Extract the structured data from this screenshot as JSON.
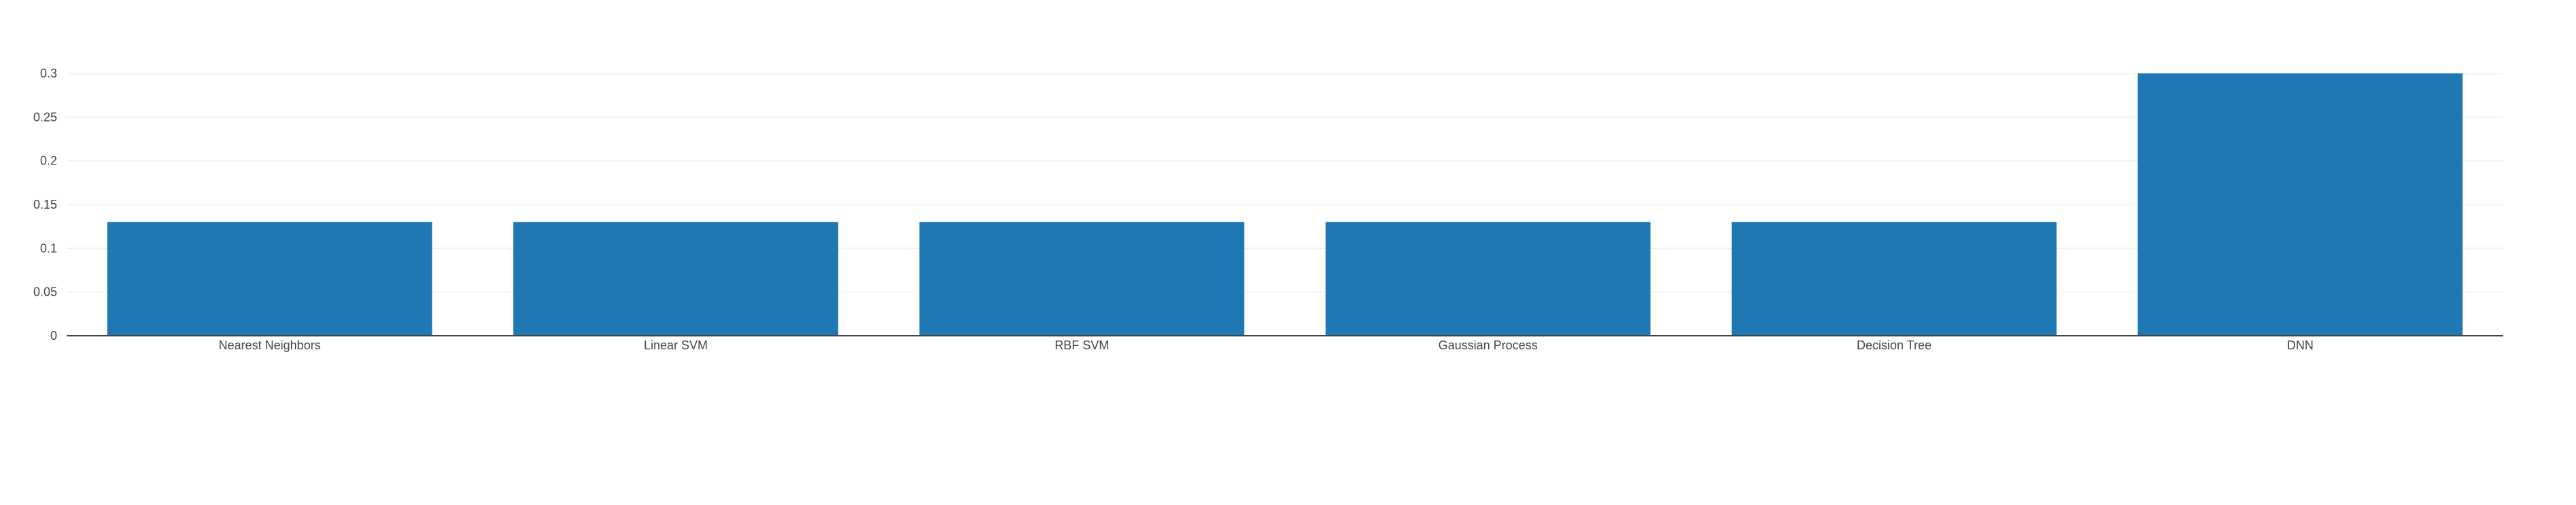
{
  "chart_data": {
    "type": "bar",
    "categories": [
      "Nearest Neighbors",
      "Linear SVM",
      "RBF SVM",
      "Gaussian Process",
      "Decision Tree",
      "DNN"
    ],
    "values": [
      0.13,
      0.13,
      0.13,
      0.13,
      0.13,
      0.3
    ],
    "y_ticks": [
      "0",
      "0.05",
      "0.1",
      "0.15",
      "0.2",
      "0.25",
      "0.3"
    ],
    "ylim": [
      0,
      0.3
    ],
    "grid": true,
    "legend": "none",
    "title": "",
    "xlabel": "",
    "ylabel": ""
  },
  "colors": {
    "bar": "#1f77b4",
    "grid": "#eeeeee",
    "axis": "#444444",
    "text": "#444444",
    "background": "#ffffff"
  }
}
